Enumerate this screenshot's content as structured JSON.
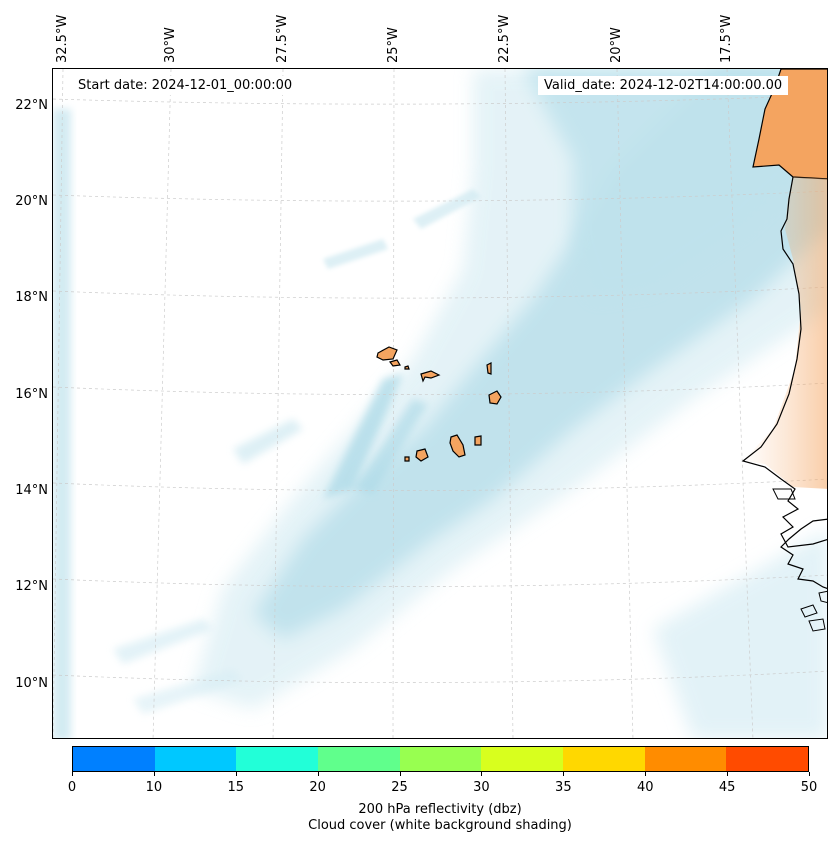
{
  "map": {
    "start_date": "Start date: 2024-12-01_00:00:00",
    "valid_date": "Valid_date: 2024-12-02T14:00:00.00",
    "longitude_labels": [
      "32.5°W",
      "30°W",
      "27.5°W",
      "25°W",
      "22.5°W",
      "20°W",
      "17.5°W"
    ],
    "latitude_labels": [
      "22°N",
      "20°N",
      "18°N",
      "16°N",
      "14°N",
      "12°N",
      "10°N"
    ],
    "extent": {
      "lon_min": -33.0,
      "lon_max": -15.5,
      "lat_min": 8.9,
      "lat_max": 22.7
    },
    "features": [
      "cloud-cover-shading",
      "africa-coastline",
      "cape-verde-islands"
    ],
    "colors": {
      "land": "#f4a460",
      "cloud": "#a8d8e6",
      "coastline": "#000000",
      "gridline": "#cccccc"
    }
  },
  "colorbar": {
    "ticks": [
      "0",
      "10",
      "15",
      "20",
      "25",
      "30",
      "35",
      "40",
      "45",
      "50"
    ],
    "colors": [
      "#0080ff",
      "#00c8ff",
      "#22ffd8",
      "#60ff8c",
      "#98ff50",
      "#d8ff1e",
      "#ffd800",
      "#ff8c00",
      "#ff4b00"
    ],
    "label": "200 hPa reflectivity (dbz)",
    "sublabel": "Cloud cover (white background shading)"
  }
}
